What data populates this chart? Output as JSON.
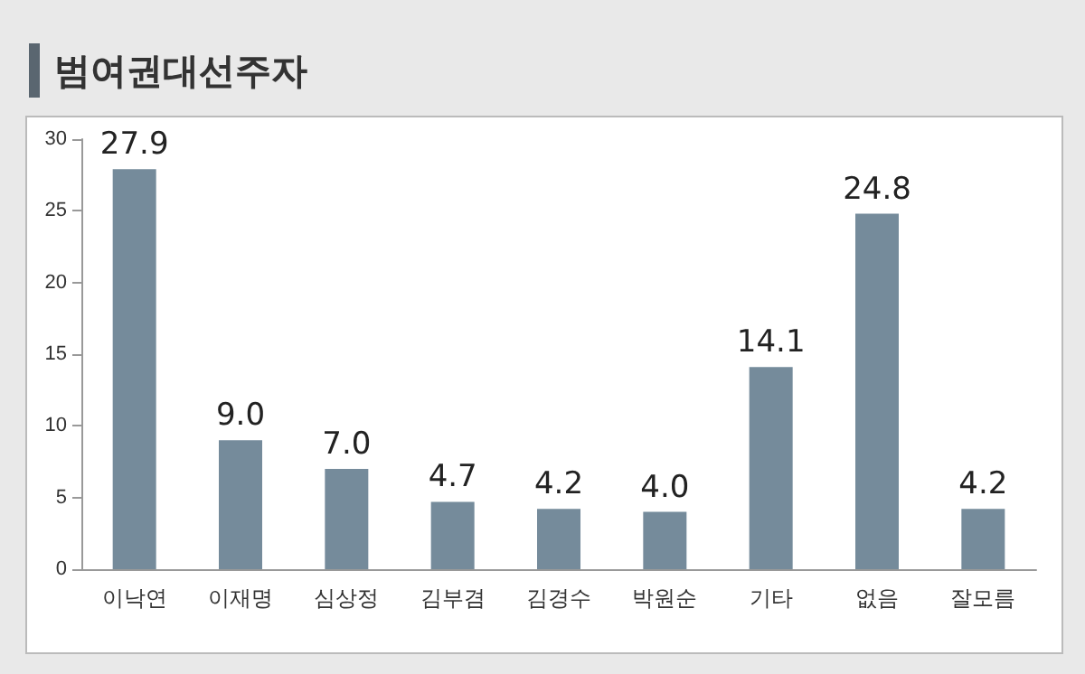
{
  "chart_data": {
    "type": "bar",
    "title": "범여권대선주자",
    "categories": [
      "이낙연",
      "이재명",
      "심상정",
      "김부겸",
      "김경수",
      "박원순",
      "기타",
      "없음",
      "잘모름"
    ],
    "values": [
      27.9,
      9.0,
      7.0,
      4.7,
      4.2,
      4.0,
      14.1,
      24.8,
      4.2
    ],
    "value_labels": [
      "27.9",
      "9.0",
      "7.0",
      "4.7",
      "4.2",
      "4.0",
      "14.1",
      "24.8",
      "4.2"
    ],
    "color": "#758b9b",
    "ylim": [
      0,
      30
    ],
    "yticks": [
      0,
      5,
      10,
      15,
      20,
      25,
      30
    ],
    "grid": false
  }
}
